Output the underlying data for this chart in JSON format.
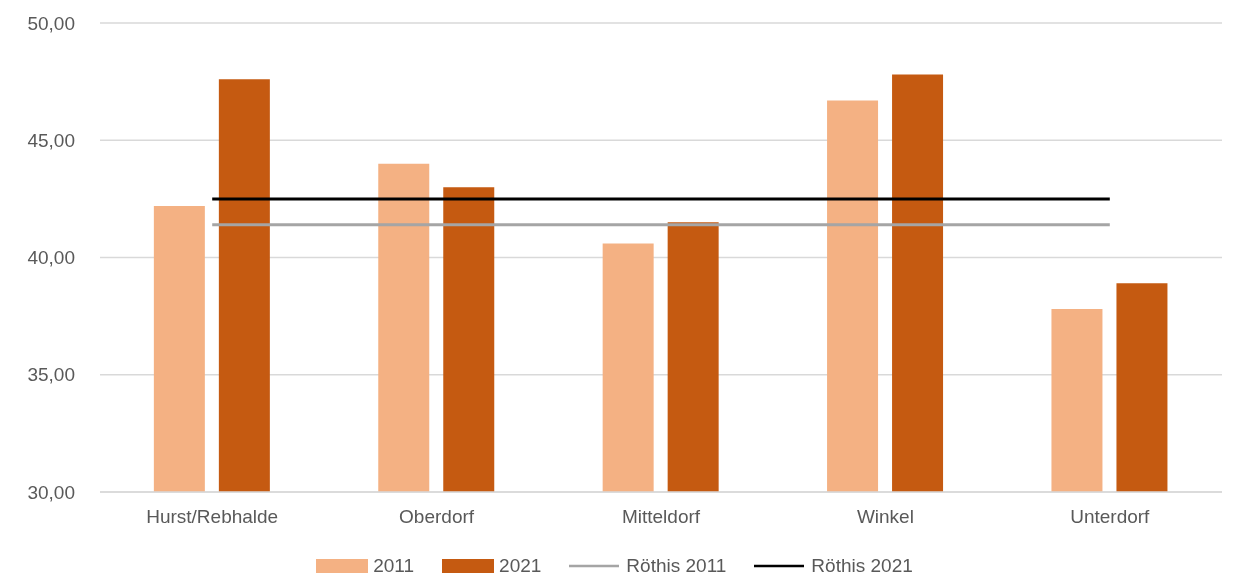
{
  "chart_data": {
    "type": "bar",
    "categories": [
      "Hurst/Rebhalde",
      "Oberdorf",
      "Mitteldorf",
      "Winkel",
      "Unterdorf"
    ],
    "series": [
      {
        "name": "2011",
        "color": "#f4b183",
        "values": [
          42.2,
          44.0,
          40.6,
          46.7,
          37.8
        ]
      },
      {
        "name": "2021",
        "color": "#c55a11",
        "values": [
          47.6,
          43.0,
          41.5,
          47.8,
          38.9
        ]
      },
      {
        "name": "Röthis 2011",
        "type": "line",
        "color": "#a5a5a5",
        "values": [
          41.4,
          41.4,
          41.4,
          41.4,
          41.4
        ]
      },
      {
        "name": "Röthis 2021",
        "type": "line",
        "color": "#000000",
        "values": [
          42.5,
          42.5,
          42.5,
          42.5,
          42.5
        ]
      }
    ],
    "ylim": [
      30,
      50
    ],
    "yticks": [
      {
        "value": 30,
        "label": "30,00"
      },
      {
        "value": 35,
        "label": "35,00"
      },
      {
        "value": 40,
        "label": "40,00"
      },
      {
        "value": 45,
        "label": "45,00"
      },
      {
        "value": 50,
        "label": "50,00"
      }
    ],
    "grid": "y",
    "legend": "bottom",
    "marker": "none"
  }
}
